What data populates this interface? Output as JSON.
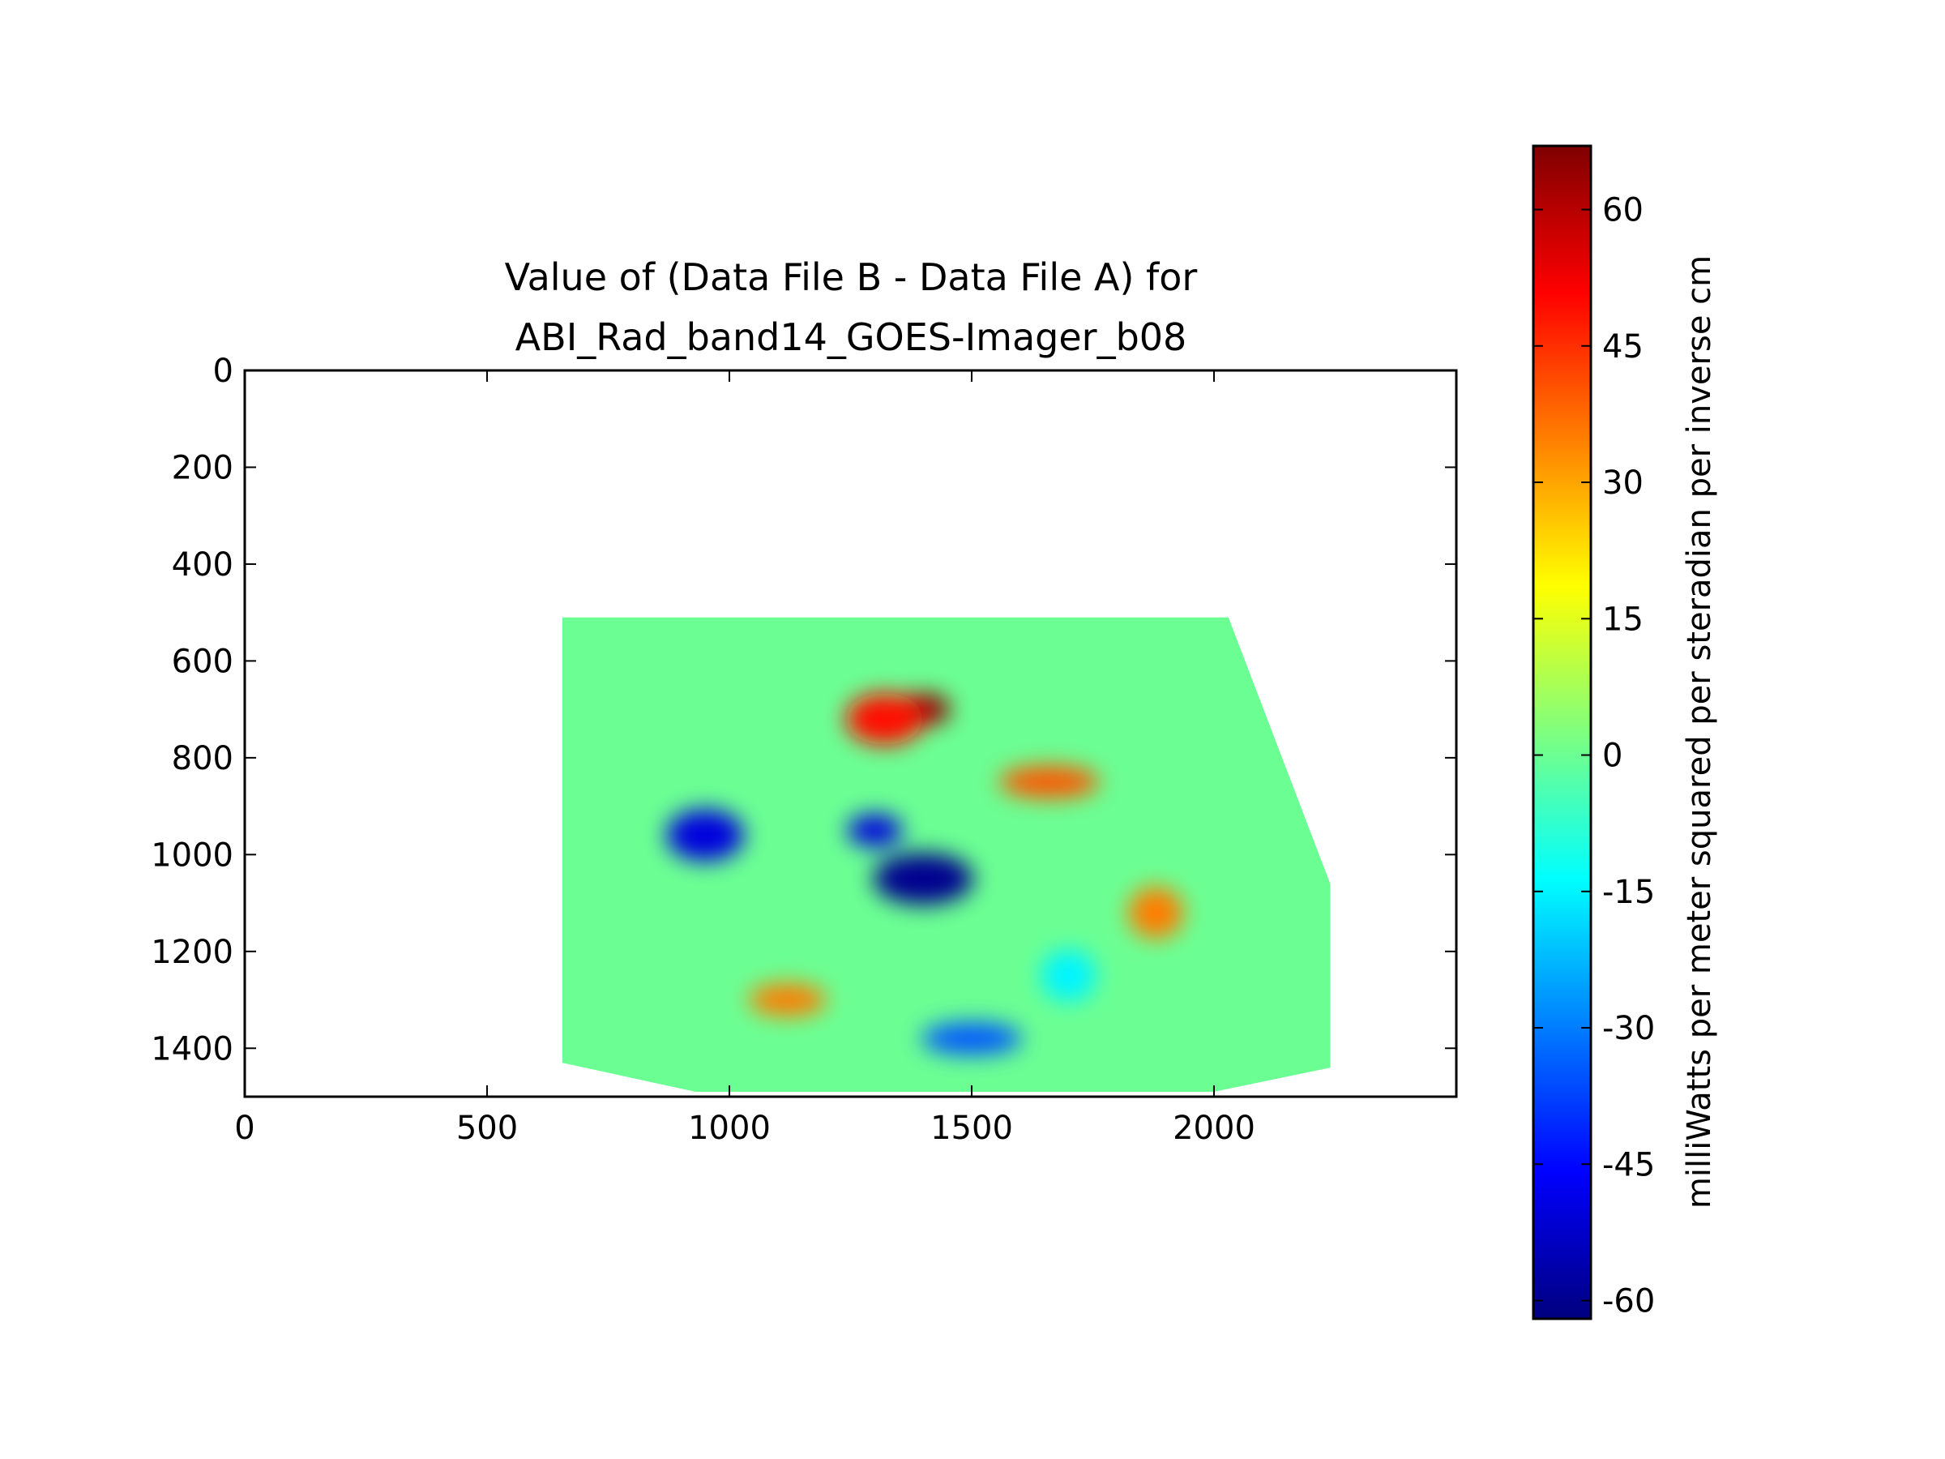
{
  "chart_data": {
    "type": "heatmap",
    "title_lines": [
      "Value of (Data File B - Data File A) for",
      "ABI_Rad_band14_GOES-Imager_b08"
    ],
    "xlabel": "",
    "ylabel": "",
    "xlim": [
      0,
      2500
    ],
    "ylim": [
      1500,
      0
    ],
    "x_ticks": [
      0,
      500,
      1000,
      1500,
      2000
    ],
    "y_ticks": [
      0,
      200,
      400,
      600,
      800,
      1000,
      1200,
      1400
    ],
    "x_tick_labels": [
      "0",
      "500",
      "1000",
      "1500",
      "2000"
    ],
    "y_tick_labels": [
      "0",
      "200",
      "400",
      "600",
      "800",
      "1000",
      "1200",
      "1400"
    ],
    "data_region_outline": [
      [
        655,
        510
      ],
      [
        2030,
        510
      ],
      [
        2240,
        1060
      ],
      [
        2240,
        1440
      ],
      [
        2000,
        1490
      ],
      [
        930,
        1490
      ],
      [
        655,
        1430
      ]
    ],
    "colormap": "jet",
    "colorbar": {
      "label": "milliWatts per meter squared per steradian per inverse cm",
      "range": [
        -62,
        67
      ],
      "ticks": [
        60,
        45,
        30,
        15,
        0,
        -15,
        -30,
        -45,
        -60
      ],
      "tick_labels": [
        "60",
        "45",
        "30",
        "15",
        "0",
        "-15",
        "-30",
        "-45",
        "-60"
      ],
      "colors": [
        "#00007f",
        "#0000ff",
        "#007fff",
        "#00ffff",
        "#7fff7f",
        "#ffff00",
        "#ff7f00",
        "#ff0000",
        "#7f0000"
      ]
    },
    "features": [
      {
        "x": 1400,
        "y": 700,
        "value": 65
      },
      {
        "x": 1320,
        "y": 720,
        "value": 50
      },
      {
        "x": 1660,
        "y": 850,
        "value": 40
      },
      {
        "x": 1880,
        "y": 1120,
        "value": 35
      },
      {
        "x": 1120,
        "y": 1300,
        "value": 35
      },
      {
        "x": 1400,
        "y": 1050,
        "value": -60
      },
      {
        "x": 1300,
        "y": 950,
        "value": -50
      },
      {
        "x": 950,
        "y": 960,
        "value": -50
      },
      {
        "x": 1500,
        "y": 1380,
        "value": -35
      },
      {
        "x": 1700,
        "y": 1250,
        "value": -15
      }
    ]
  }
}
